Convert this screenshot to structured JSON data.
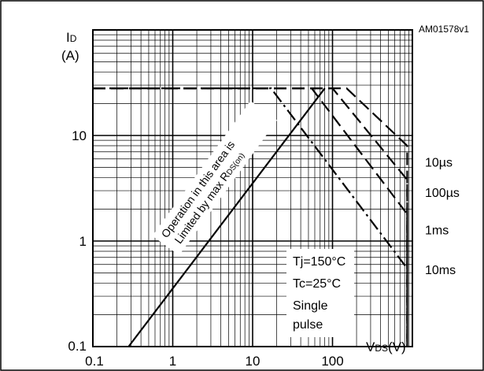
{
  "chart_data": {
    "type": "line",
    "x_scale": "log",
    "y_scale": "log",
    "xlim": [
      0.1,
      1000
    ],
    "ylim": [
      0.1,
      100
    ],
    "grid": true,
    "doc_id": "AM01578v1",
    "ylabel_main": "I",
    "ylabel_sub": "D",
    "yunit": "(A)",
    "xlabel_main": "V",
    "xlabel_sub": "DS",
    "xunit": "(V)",
    "x_ticks": [
      {
        "value": 0.1,
        "label": "0.1"
      },
      {
        "value": 1,
        "label": "1"
      },
      {
        "value": 10,
        "label": "10"
      },
      {
        "value": 100,
        "label": "100"
      }
    ],
    "y_ticks": [
      {
        "value": 0.1,
        "label": "0.1"
      },
      {
        "value": 1,
        "label": "1"
      },
      {
        "value": 10,
        "label": "10"
      }
    ],
    "rdson_label_line1": "Operation in this area is",
    "rdson_label_line2_prefix": "Limited by max R",
    "rdson_label_line2_sub": "DS(on)",
    "conditions": [
      "Tj=150°C",
      "Tc=25°C",
      "Single",
      "pulse"
    ],
    "series": [
      {
        "name": "10µs",
        "label_y": 5.6,
        "style": "dash",
        "points": [
          [
            0.1,
            28
          ],
          [
            150,
            28
          ],
          [
            860,
            8
          ],
          [
            860,
            0.1
          ]
        ]
      },
      {
        "name": "100µs",
        "label_y": 2.9,
        "style": "dash",
        "points": [
          [
            0.1,
            28
          ],
          [
            100,
            28
          ],
          [
            860,
            3.8
          ],
          [
            860,
            0.1
          ]
        ]
      },
      {
        "name": "1ms",
        "label_y": 1.28,
        "style": "dash",
        "points": [
          [
            0.1,
            28
          ],
          [
            55,
            28
          ],
          [
            860,
            1.8
          ],
          [
            860,
            0.1
          ]
        ]
      },
      {
        "name": "10ms",
        "label_y": 0.54,
        "style": "dashdot",
        "points": [
          [
            0.1,
            28
          ],
          [
            17,
            28
          ],
          [
            860,
            0.55
          ]
        ]
      }
    ],
    "rdson_line": {
      "style": "solid",
      "points": [
        [
          0.28,
          0.1
        ],
        [
          80,
          28
        ]
      ]
    }
  }
}
